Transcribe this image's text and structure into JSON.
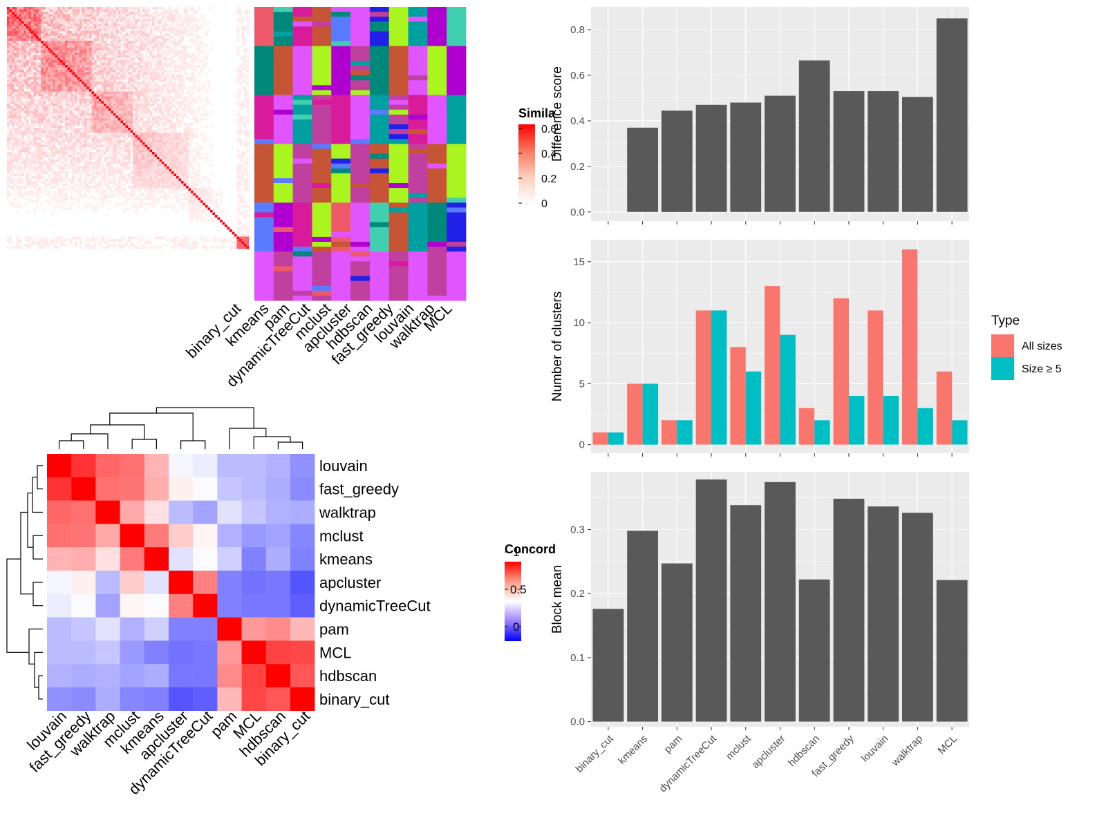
{
  "colors": {
    "panel_bg": "#ebebeb",
    "grid": "#ffffff",
    "bar_gray": "#595959",
    "all_sizes": "#f8766d",
    "size_ge5": "#00bfc4",
    "heat_high": "#ff0000",
    "heat_mid": "#ffffff",
    "heat_low": "#0000ff"
  },
  "similarity_heatmap": {
    "legend_title": "Simila",
    "legend_ticks": [
      "0.6",
      "0.4",
      "0.2",
      "0"
    ],
    "methods": [
      "binary_cut",
      "kmeans",
      "pam",
      "dynamicTreeCut",
      "mclust",
      "apcluster",
      "hdbscan",
      "fast_greedy",
      "louvain",
      "walktrap",
      "MCL"
    ]
  },
  "concordance_heatmap": {
    "legend_title": "Concord",
    "legend_ticks": [
      "1",
      "0.5",
      "0"
    ],
    "row_labels": [
      "louvain",
      "fast_greedy",
      "walktrap",
      "mclust",
      "kmeans",
      "apcluster",
      "dynamicTreeCut",
      "pam",
      "MCL",
      "hdbscan",
      "binary_cut"
    ],
    "col_labels": [
      "louvain",
      "fast_greedy",
      "walktrap",
      "mclust",
      "kmeans",
      "apcluster",
      "dynamicTreeCut",
      "pam",
      "MCL",
      "hdbscan",
      "binary_cut"
    ],
    "matrix": [
      [
        1.0,
        0.9,
        0.8,
        0.78,
        0.65,
        0.48,
        0.46,
        0.36,
        0.36,
        0.34,
        0.27
      ],
      [
        0.9,
        1.0,
        0.78,
        0.77,
        0.66,
        0.53,
        0.49,
        0.38,
        0.36,
        0.33,
        0.26
      ],
      [
        0.8,
        0.78,
        1.0,
        0.67,
        0.56,
        0.36,
        0.31,
        0.44,
        0.38,
        0.34,
        0.33
      ],
      [
        0.78,
        0.77,
        0.67,
        1.0,
        0.76,
        0.6,
        0.52,
        0.34,
        0.29,
        0.31,
        0.25
      ],
      [
        0.65,
        0.66,
        0.56,
        0.76,
        1.0,
        0.44,
        0.49,
        0.4,
        0.24,
        0.33,
        0.24
      ],
      [
        0.48,
        0.53,
        0.36,
        0.6,
        0.44,
        1.0,
        0.75,
        0.24,
        0.21,
        0.22,
        0.15
      ],
      [
        0.46,
        0.49,
        0.31,
        0.52,
        0.49,
        0.75,
        1.0,
        0.24,
        0.22,
        0.22,
        0.17
      ],
      [
        0.36,
        0.38,
        0.44,
        0.34,
        0.4,
        0.24,
        0.24,
        1.0,
        0.7,
        0.73,
        0.64
      ],
      [
        0.36,
        0.36,
        0.38,
        0.29,
        0.24,
        0.21,
        0.22,
        0.7,
        1.0,
        0.87,
        0.86
      ],
      [
        0.34,
        0.33,
        0.34,
        0.31,
        0.33,
        0.22,
        0.22,
        0.73,
        0.87,
        1.0,
        0.83
      ],
      [
        0.27,
        0.26,
        0.33,
        0.25,
        0.24,
        0.15,
        0.17,
        0.64,
        0.86,
        0.83,
        1.0
      ]
    ]
  },
  "chart_data": [
    {
      "type": "bar",
      "categories": [
        "binary_cut",
        "kmeans",
        "pam",
        "dynamicTreeCut",
        "mclust",
        "apcluster",
        "hdbscan",
        "fast_greedy",
        "louvain",
        "walktrap",
        "MCL"
      ],
      "values": [
        0.0,
        0.37,
        0.445,
        0.47,
        0.48,
        0.51,
        0.665,
        0.53,
        0.53,
        0.505,
        0.85
      ],
      "ylabel": "Difference score",
      "ylim": [
        -0.04,
        0.9
      ],
      "yticks": [
        "0.0",
        "0.2",
        "0.4",
        "0.6",
        "0.8"
      ],
      "grid": true
    },
    {
      "type": "bar",
      "categories": [
        "binary_cut",
        "kmeans",
        "pam",
        "dynamicTreeCut",
        "mclust",
        "apcluster",
        "hdbscan",
        "fast_greedy",
        "louvain",
        "walktrap",
        "MCL"
      ],
      "series": [
        {
          "name": "All sizes",
          "values": [
            1,
            5,
            2,
            11,
            8,
            13,
            3,
            12,
            11,
            16,
            6
          ]
        },
        {
          "name": "Size ≥ 5",
          "values": [
            1,
            5,
            2,
            11,
            6,
            9,
            2,
            4,
            4,
            3,
            2
          ]
        }
      ],
      "ylabel": "Number of clusters",
      "ylim": [
        -0.7,
        16.8
      ],
      "yticks": [
        "0",
        "5",
        "10",
        "15"
      ],
      "legend_title": "Type",
      "legend_position": "right",
      "grid": true
    },
    {
      "type": "bar",
      "categories": [
        "binary_cut",
        "kmeans",
        "pam",
        "dynamicTreeCut",
        "mclust",
        "apcluster",
        "hdbscan",
        "fast_greedy",
        "louvain",
        "walktrap",
        "MCL"
      ],
      "values": [
        0.176,
        0.298,
        0.247,
        0.378,
        0.338,
        0.374,
        0.222,
        0.348,
        0.336,
        0.326,
        0.221
      ],
      "ylabel": "Block mean",
      "ylim": [
        -0.008,
        0.39
      ],
      "yticks": [
        "0.0",
        "0.1",
        "0.2",
        "0.3"
      ],
      "grid": true
    }
  ]
}
